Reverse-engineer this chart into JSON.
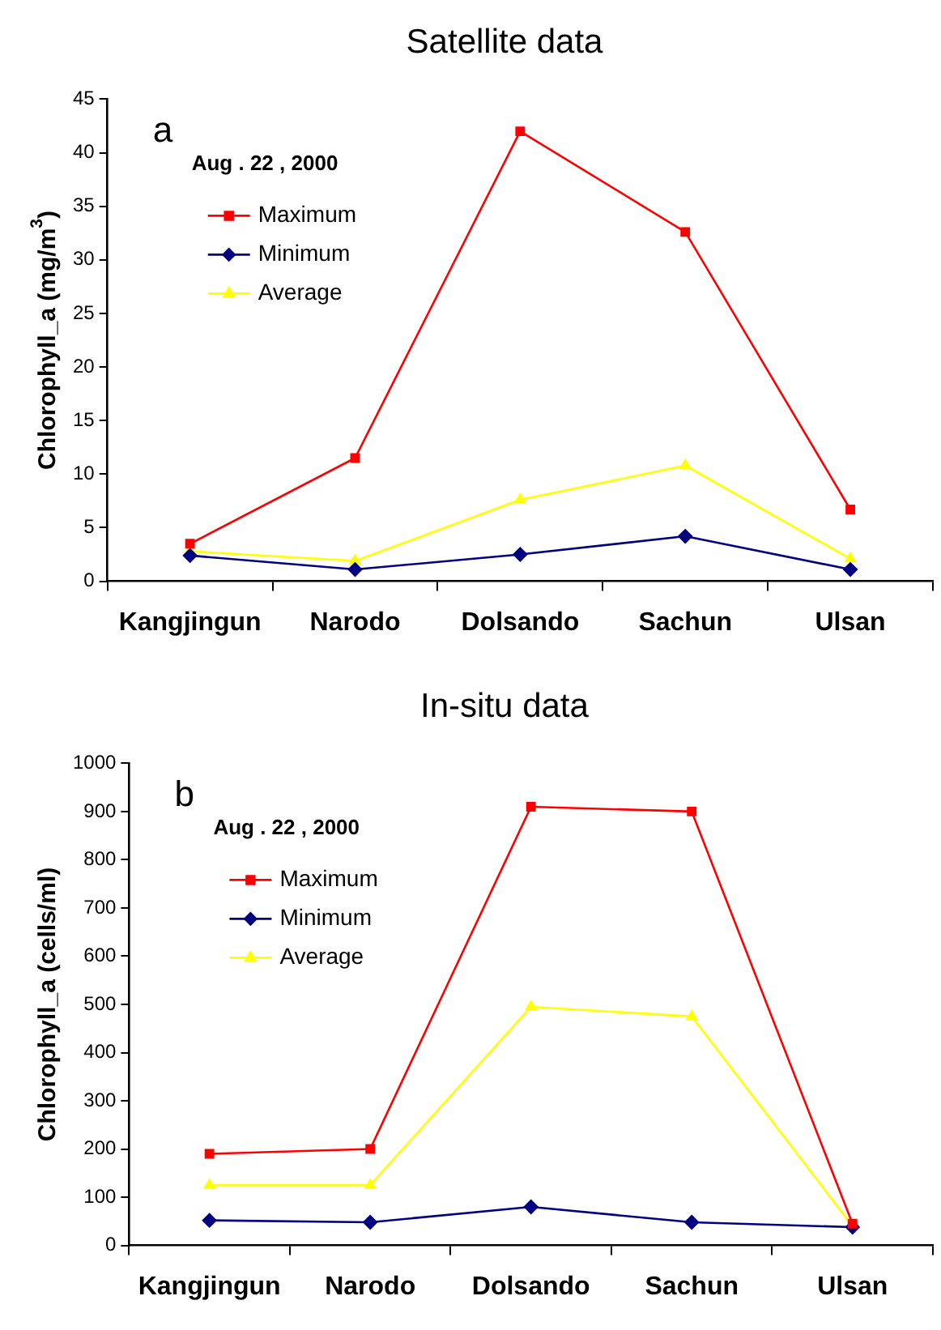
{
  "chart_data": [
    {
      "type": "line",
      "title": "Satellite data",
      "ylabel": "Chlorophyll_a (mg/m$^{3}$)",
      "legend_title": "Aug . 22 , 2000",
      "annotations": [
        "a"
      ],
      "categories": [
        "Kangjingun",
        "Narodo",
        "Dolsando",
        "Sachun",
        "Ulsan"
      ],
      "series": [
        {
          "name": "Maximum",
          "color": "#ff0000",
          "marker": "square",
          "values": [
            3.5,
            11.5,
            42,
            32.6,
            6.7
          ]
        },
        {
          "name": "Minimum",
          "color": "#000080",
          "marker": "diamond",
          "values": [
            2.4,
            1.1,
            2.5,
            4.2,
            1.1
          ]
        },
        {
          "name": "Average",
          "color": "#ffff00",
          "marker": "triangle",
          "values": [
            2.8,
            1.9,
            7.6,
            10.8,
            2.1
          ]
        }
      ],
      "ylim": [
        0,
        45
      ],
      "yticks": [
        0,
        5,
        10,
        15,
        20,
        25,
        30,
        35,
        40,
        45
      ],
      "grid": false,
      "legend": "top left"
    },
    {
      "type": "line",
      "title": "In-situ data",
      "ylabel": "Chlorophyll_a (cells/ml)",
      "legend_title": "Aug . 22 , 2000",
      "annotations": [
        "b"
      ],
      "categories": [
        "Kangjingun",
        "Narodo",
        "Dolsando",
        "Sachun",
        "Ulsan"
      ],
      "series": [
        {
          "name": "Maximum",
          "color": "#ff0000",
          "marker": "square",
          "values": [
            190,
            200,
            910,
            900,
            45
          ]
        },
        {
          "name": "Minimum",
          "color": "#000080",
          "marker": "diamond",
          "values": [
            52,
            48,
            80,
            48,
            38
          ]
        },
        {
          "name": "Average",
          "color": "#ffff00",
          "marker": "triangle",
          "values": [
            125,
            125,
            495,
            475,
            40
          ]
        }
      ],
      "ylim": [
        0,
        1000
      ],
      "yticks": [
        0,
        100,
        200,
        300,
        400,
        500,
        600,
        700,
        800,
        900,
        1000
      ],
      "grid": false,
      "legend": "top left"
    }
  ]
}
